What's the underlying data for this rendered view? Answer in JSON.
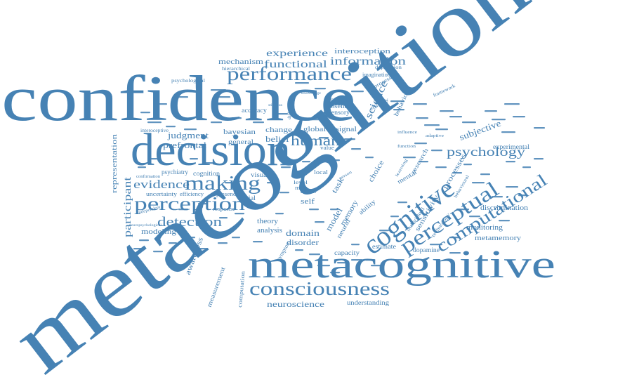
{
  "colors": {
    "word": "#4682b4",
    "background": "#ffffff"
  },
  "words": {
    "metacognition": "metacognition",
    "confidence": "confidence",
    "decision": "decision",
    "metacognitive": "metacognitive",
    "cognitive": "cognitive",
    "performance": "performance",
    "making": "making",
    "perception": "perception",
    "perceptual": "perceptual",
    "computational": "computational",
    "consciousness": "consciousness",
    "psychology": "psychology",
    "detection": "detection",
    "evidence": "evidence",
    "human": "human",
    "experience": "experience",
    "information": "information",
    "functional": "functional",
    "mechanism": "mechanism",
    "interoception": "interoception",
    "science": "science",
    "judgment": "judgment",
    "prefrontal": "prefrontal",
    "bayesian": "bayesian",
    "belief": "belief",
    "change": "change",
    "global": "global",
    "signal": "signal",
    "general": "general",
    "neuroscience": "neuroscience",
    "understanding": "understanding",
    "participant": "participant",
    "representation": "representation",
    "modeling": "modeling",
    "awareness": "awareness",
    "measurement": "measurement",
    "computation": "computation",
    "domain": "domain",
    "disorder": "disorder",
    "theory": "theory",
    "analysis": "analysis",
    "memory": "memory",
    "model": "model",
    "neural": "neural",
    "task": "task",
    "self": "self",
    "subjective": "subjective",
    "experimental": "experimental",
    "discrimination": "discrimination",
    "monitoring": "monitoring",
    "metamemory": "metamemory",
    "dopamine": "dopamine",
    "estimate": "estimate",
    "capacity": "capacity",
    "mental": "mental",
    "choice": "choice",
    "research": "research",
    "processes": "processes",
    "sensitivity": "sensitivity",
    "behavioural": "behavioural",
    "individual": "individual",
    "technology": "technology",
    "accuracy": "accuracy",
    "absence": "absence",
    "sensory": "sensory",
    "different": "different",
    "imagination": "imagination",
    "processing": "processing",
    "behavioral": "behavioral",
    "depression": "depression",
    "hierarchical": "hierarchical",
    "psychological": "psychological",
    "psychiatry": "psychiatry",
    "cognition": "cognition",
    "uncertainty": "uncertainty",
    "efficiency": "efficiency",
    "presence": "presence",
    "response": "response",
    "social": "social",
    "visual": "visual",
    "interoceptive": "interoceptive",
    "framework": "framework",
    "ability": "ability",
    "value": "value",
    "symptom": "symptom",
    "action": "action",
    "level": "level",
    "meta": "meta",
    "person": "person",
    "efficacy": "efficacy",
    "mind": "mind",
    "impact": "impact",
    "agency": "agency",
    "local": "local",
    "experimental_small": "experimental",
    "confirmation": "confirmation",
    "independent": "independent",
    "neuropsychological": "neuropsychological",
    "fidelity": "fidelity",
    "influence": "influence",
    "function": "function",
    "learning": "learning",
    "adaptive": "adaptive",
    "feedback": "feedback",
    "knowledge": "knowledge",
    "stimulus": "stimulus",
    "difference": "difference",
    "insight": "insight",
    "state": "state"
  }
}
